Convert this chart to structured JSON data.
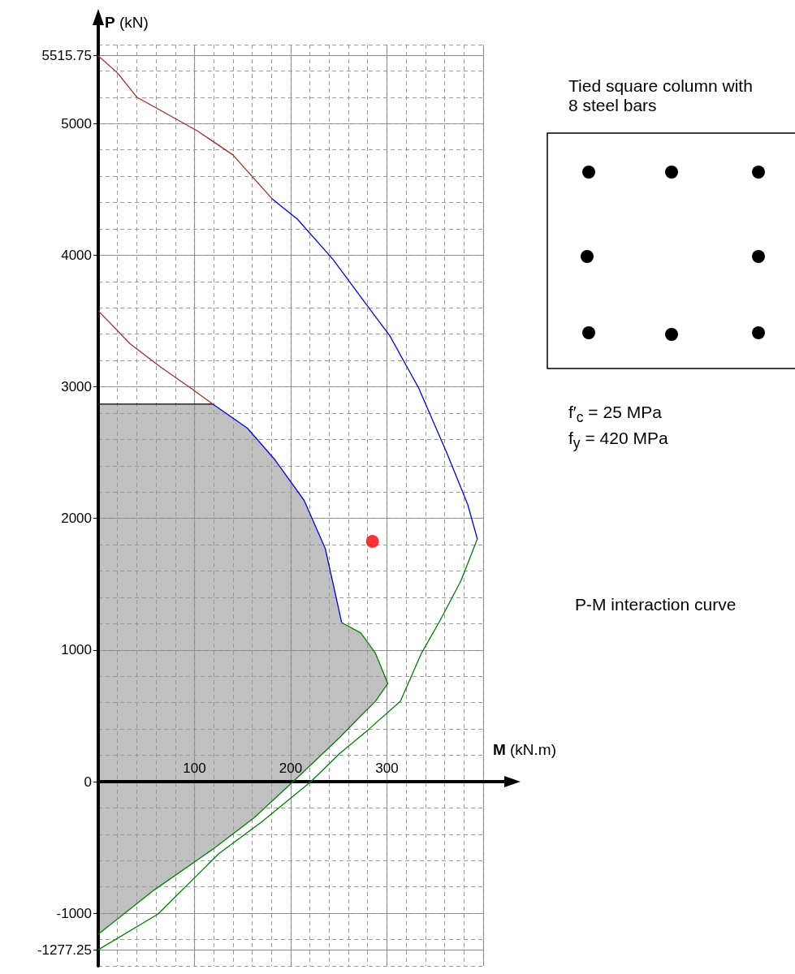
{
  "chart_data": {
    "type": "line",
    "xlabel": "M (kN.m)",
    "ylabel": "P (kN)",
    "xlim": [
      0,
      400
    ],
    "xticks": [
      {
        "value": 0,
        "label": null
      },
      100,
      200,
      300,
      {
        "value": 400,
        "label": null
      }
    ],
    "ylim": [
      -1400,
      5600
    ],
    "yticks": [
      -1277.25,
      -1000,
      0,
      1000,
      2000,
      3000,
      4000,
      5000,
      5515.75
    ],
    "grid": true,
    "marker": "none",
    "series": [
      {
        "type": "area",
        "color": "#c0c0c0",
        "x": [
          0,
          119,
          155,
          184,
          214,
          236,
          253,
          273,
          288,
          301,
          288,
          273,
          251,
          207,
          162,
          118,
          58,
          0
        ],
        "values": [
          2869,
          2869,
          2686,
          2442,
          2137,
          1770,
          1209,
          1129,
          977,
          745,
          610,
          501,
          336,
          31,
          -275,
          -519,
          -824,
          -1160
        ],
        "colors": [
          "#000000",
          "#0000ff",
          "#0000ff",
          "#0000ff",
          "#0000ff",
          "#0000ff",
          "#008000",
          "#008000",
          "#008000",
          "#008000",
          "#008000",
          "#008000",
          "#008000",
          "#008000",
          "#008000",
          "#008000",
          "#008000",
          null
        ]
      },
      {
        "color": "#a52a2a",
        "x": [
          0,
          20,
          40,
          58,
          103,
          140,
          181
        ],
        "values": [
          5515.75,
          5385,
          5201,
          5128,
          4945,
          4762,
          4426
        ]
      },
      {
        "color": "#0000ff",
        "x": [
          181,
          207,
          244,
          281,
          303,
          333,
          362,
          384,
          394
        ],
        "values": [
          4426,
          4274,
          3968,
          3602,
          3388,
          2991,
          2503,
          2106,
          1844
        ]
      },
      {
        "color": "#008000",
        "x": [
          394,
          377,
          355,
          336,
          314,
          281,
          251,
          221,
          170,
          125,
          62,
          0
        ],
        "values": [
          1844,
          1526,
          1221,
          977,
          610,
          397,
          214,
          0,
          -305,
          -549,
          -1007,
          -1277.25
        ]
      },
      {
        "color": "#a52a2a",
        "x": [
          0,
          33,
          66,
          96,
          119
        ],
        "values": [
          3578,
          3327,
          3144,
          2991,
          2869
        ]
      },
      {
        "type": "scatter",
        "marker": "circle",
        "color": "#ff0000",
        "x": [
          285
        ],
        "values": [
          1825
        ]
      }
    ],
    "annotations": [
      "Tied square column with 8 steel bars",
      "f′$_{c}$ = 25 MPa",
      "f$_{y}$ = 420 MPa",
      "P-M interaction curve"
    ]
  }
}
